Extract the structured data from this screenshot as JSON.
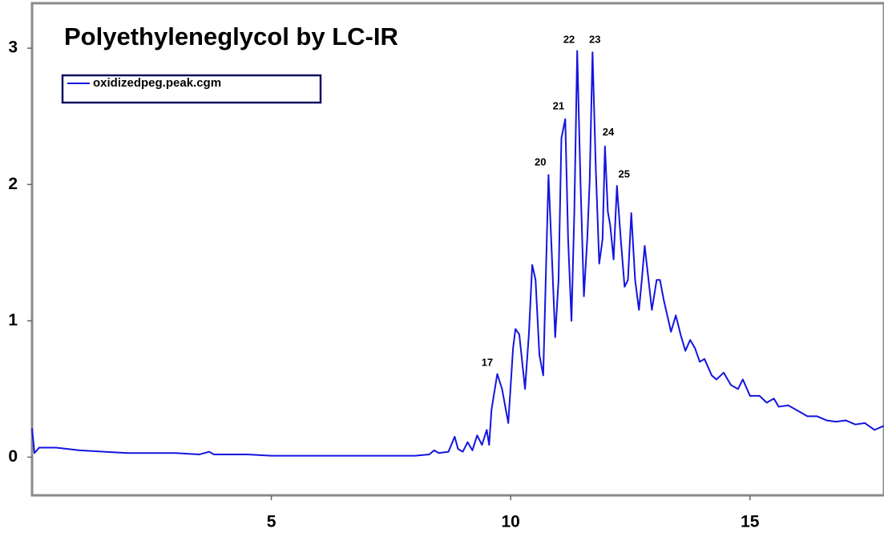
{
  "chart_data": {
    "type": "line",
    "title": "Polyethyleneglycol by LC-IR",
    "x": [
      0,
      0.05,
      0.15,
      0.5,
      1.0,
      1.5,
      2.0,
      2.5,
      3.0,
      3.5,
      3.7,
      3.8,
      4.5,
      5,
      6,
      7,
      8,
      8.3,
      8.4,
      8.5,
      8.7,
      8.83,
      8.9,
      9.0,
      9.1,
      9.2,
      9.3,
      9.4,
      9.5,
      9.55,
      9.6,
      9.72,
      9.82,
      9.95,
      10.05,
      10.1,
      10.18,
      10.3,
      10.38,
      10.45,
      10.52,
      10.6,
      10.68,
      10.79,
      10.87,
      10.93,
      11.0,
      11.06,
      11.14,
      11.2,
      11.27,
      11.33,
      11.39,
      11.46,
      11.53,
      11.6,
      11.65,
      11.71,
      11.78,
      11.85,
      11.92,
      11.97,
      12.03,
      12.08,
      12.15,
      12.22,
      12.3,
      12.38,
      12.45,
      12.52,
      12.6,
      12.68,
      12.74,
      12.8,
      12.88,
      12.95,
      13.05,
      13.12,
      13.2,
      13.35,
      13.45,
      13.55,
      13.65,
      13.75,
      13.85,
      13.95,
      14.05,
      14.2,
      14.3,
      14.45,
      14.6,
      14.75,
      14.85,
      15.0,
      15.2,
      15.35,
      15.5,
      15.6,
      15.8,
      16.0,
      16.2,
      16.4,
      16.6,
      16.8,
      17.0,
      17.2,
      17.4,
      17.6,
      17.8
    ],
    "series": [
      {
        "name": "oxidizedpeg.peak.cgm",
        "color": "#1414e0",
        "values": [
          0.21,
          0.03,
          0.07,
          0.07,
          0.05,
          0.04,
          0.03,
          0.03,
          0.03,
          0.02,
          0.04,
          0.02,
          0.02,
          0.01,
          0.01,
          0.01,
          0.01,
          0.02,
          0.05,
          0.03,
          0.04,
          0.15,
          0.06,
          0.04,
          0.11,
          0.05,
          0.16,
          0.09,
          0.2,
          0.09,
          0.35,
          0.61,
          0.5,
          0.25,
          0.8,
          0.94,
          0.9,
          0.5,
          0.9,
          1.41,
          1.3,
          0.75,
          0.6,
          2.07,
          1.4,
          0.88,
          1.3,
          2.34,
          2.48,
          1.6,
          1.0,
          1.8,
          2.98,
          2.0,
          1.18,
          1.6,
          2.02,
          2.97,
          2.1,
          1.42,
          1.6,
          2.28,
          1.8,
          1.7,
          1.45,
          1.99,
          1.6,
          1.25,
          1.3,
          1.79,
          1.3,
          1.08,
          1.3,
          1.55,
          1.3,
          1.08,
          1.3,
          1.3,
          1.15,
          0.92,
          1.04,
          0.9,
          0.78,
          0.86,
          0.8,
          0.7,
          0.72,
          0.6,
          0.57,
          0.62,
          0.53,
          0.5,
          0.57,
          0.45,
          0.45,
          0.4,
          0.43,
          0.37,
          0.38,
          0.34,
          0.3,
          0.3,
          0.27,
          0.26,
          0.27,
          0.24,
          0.25,
          0.2,
          0.23
        ]
      }
    ],
    "annotations": [
      {
        "text": "17",
        "x": 9.51,
        "y": 0.69
      },
      {
        "text": "20",
        "x": 10.62,
        "y": 2.16
      },
      {
        "text": "21",
        "x": 11.0,
        "y": 2.57
      },
      {
        "text": "22",
        "x": 11.22,
        "y": 3.06
      },
      {
        "text": "23",
        "x": 11.76,
        "y": 3.06
      },
      {
        "text": "24",
        "x": 12.04,
        "y": 2.38
      },
      {
        "text": "25",
        "x": 12.37,
        "y": 2.07
      }
    ],
    "xlim": [
      0,
      17.8
    ],
    "ylim": [
      -0.28,
      3.33
    ],
    "xticks": [
      5,
      10,
      15
    ],
    "yticks": [
      0,
      1,
      2,
      3
    ],
    "grid": false,
    "legend": "upper left"
  }
}
